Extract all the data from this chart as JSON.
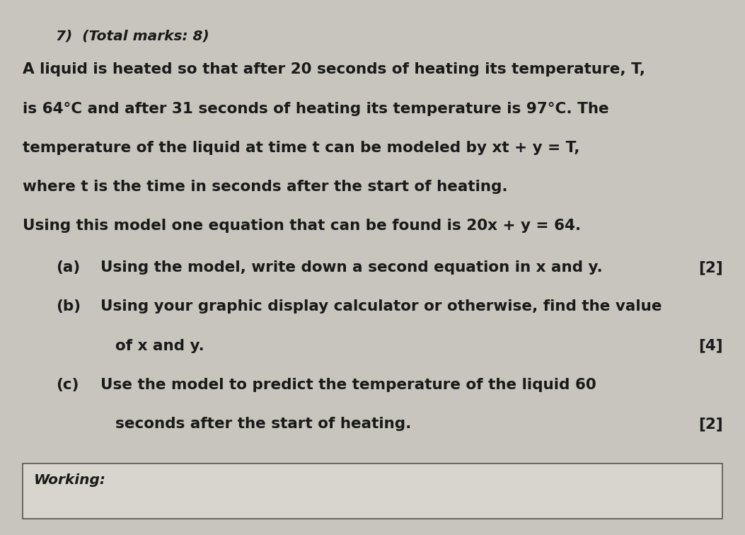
{
  "background_color": "#c8c5be",
  "paper_color": "#d8d5ce",
  "question_number": "7)",
  "total_marks": "(Total marks: 8)",
  "intro_lines": [
    "A liquid is heated so that after 20 seconds of heating its temperature, T,",
    "is 64°C and after 31 seconds of heating its temperature is 97°C. The",
    "temperature of the liquid at time t can be modeled by xt + y = T,",
    "where t is the time in seconds after the start of heating.",
    "Using this model one equation that can be found is 20x + y = 64."
  ],
  "parts": [
    {
      "label": "(a)",
      "text": "Using the model, write down a second equation in x and y.",
      "marks": "[2]",
      "continuation": null,
      "continuation_marks": null
    },
    {
      "label": "(b)",
      "text": "Using your graphic display calculator or otherwise, find the value",
      "marks": null,
      "continuation": "of x and y.",
      "continuation_marks": "[4]"
    },
    {
      "label": "(c)",
      "text": "Use the model to predict the temperature of the liquid 60",
      "marks": null,
      "continuation": "seconds after the start of heating.",
      "continuation_marks": "[2]"
    }
  ],
  "working_label": "Working:",
  "font_size": 15.5,
  "text_color": "#1a1a1a"
}
